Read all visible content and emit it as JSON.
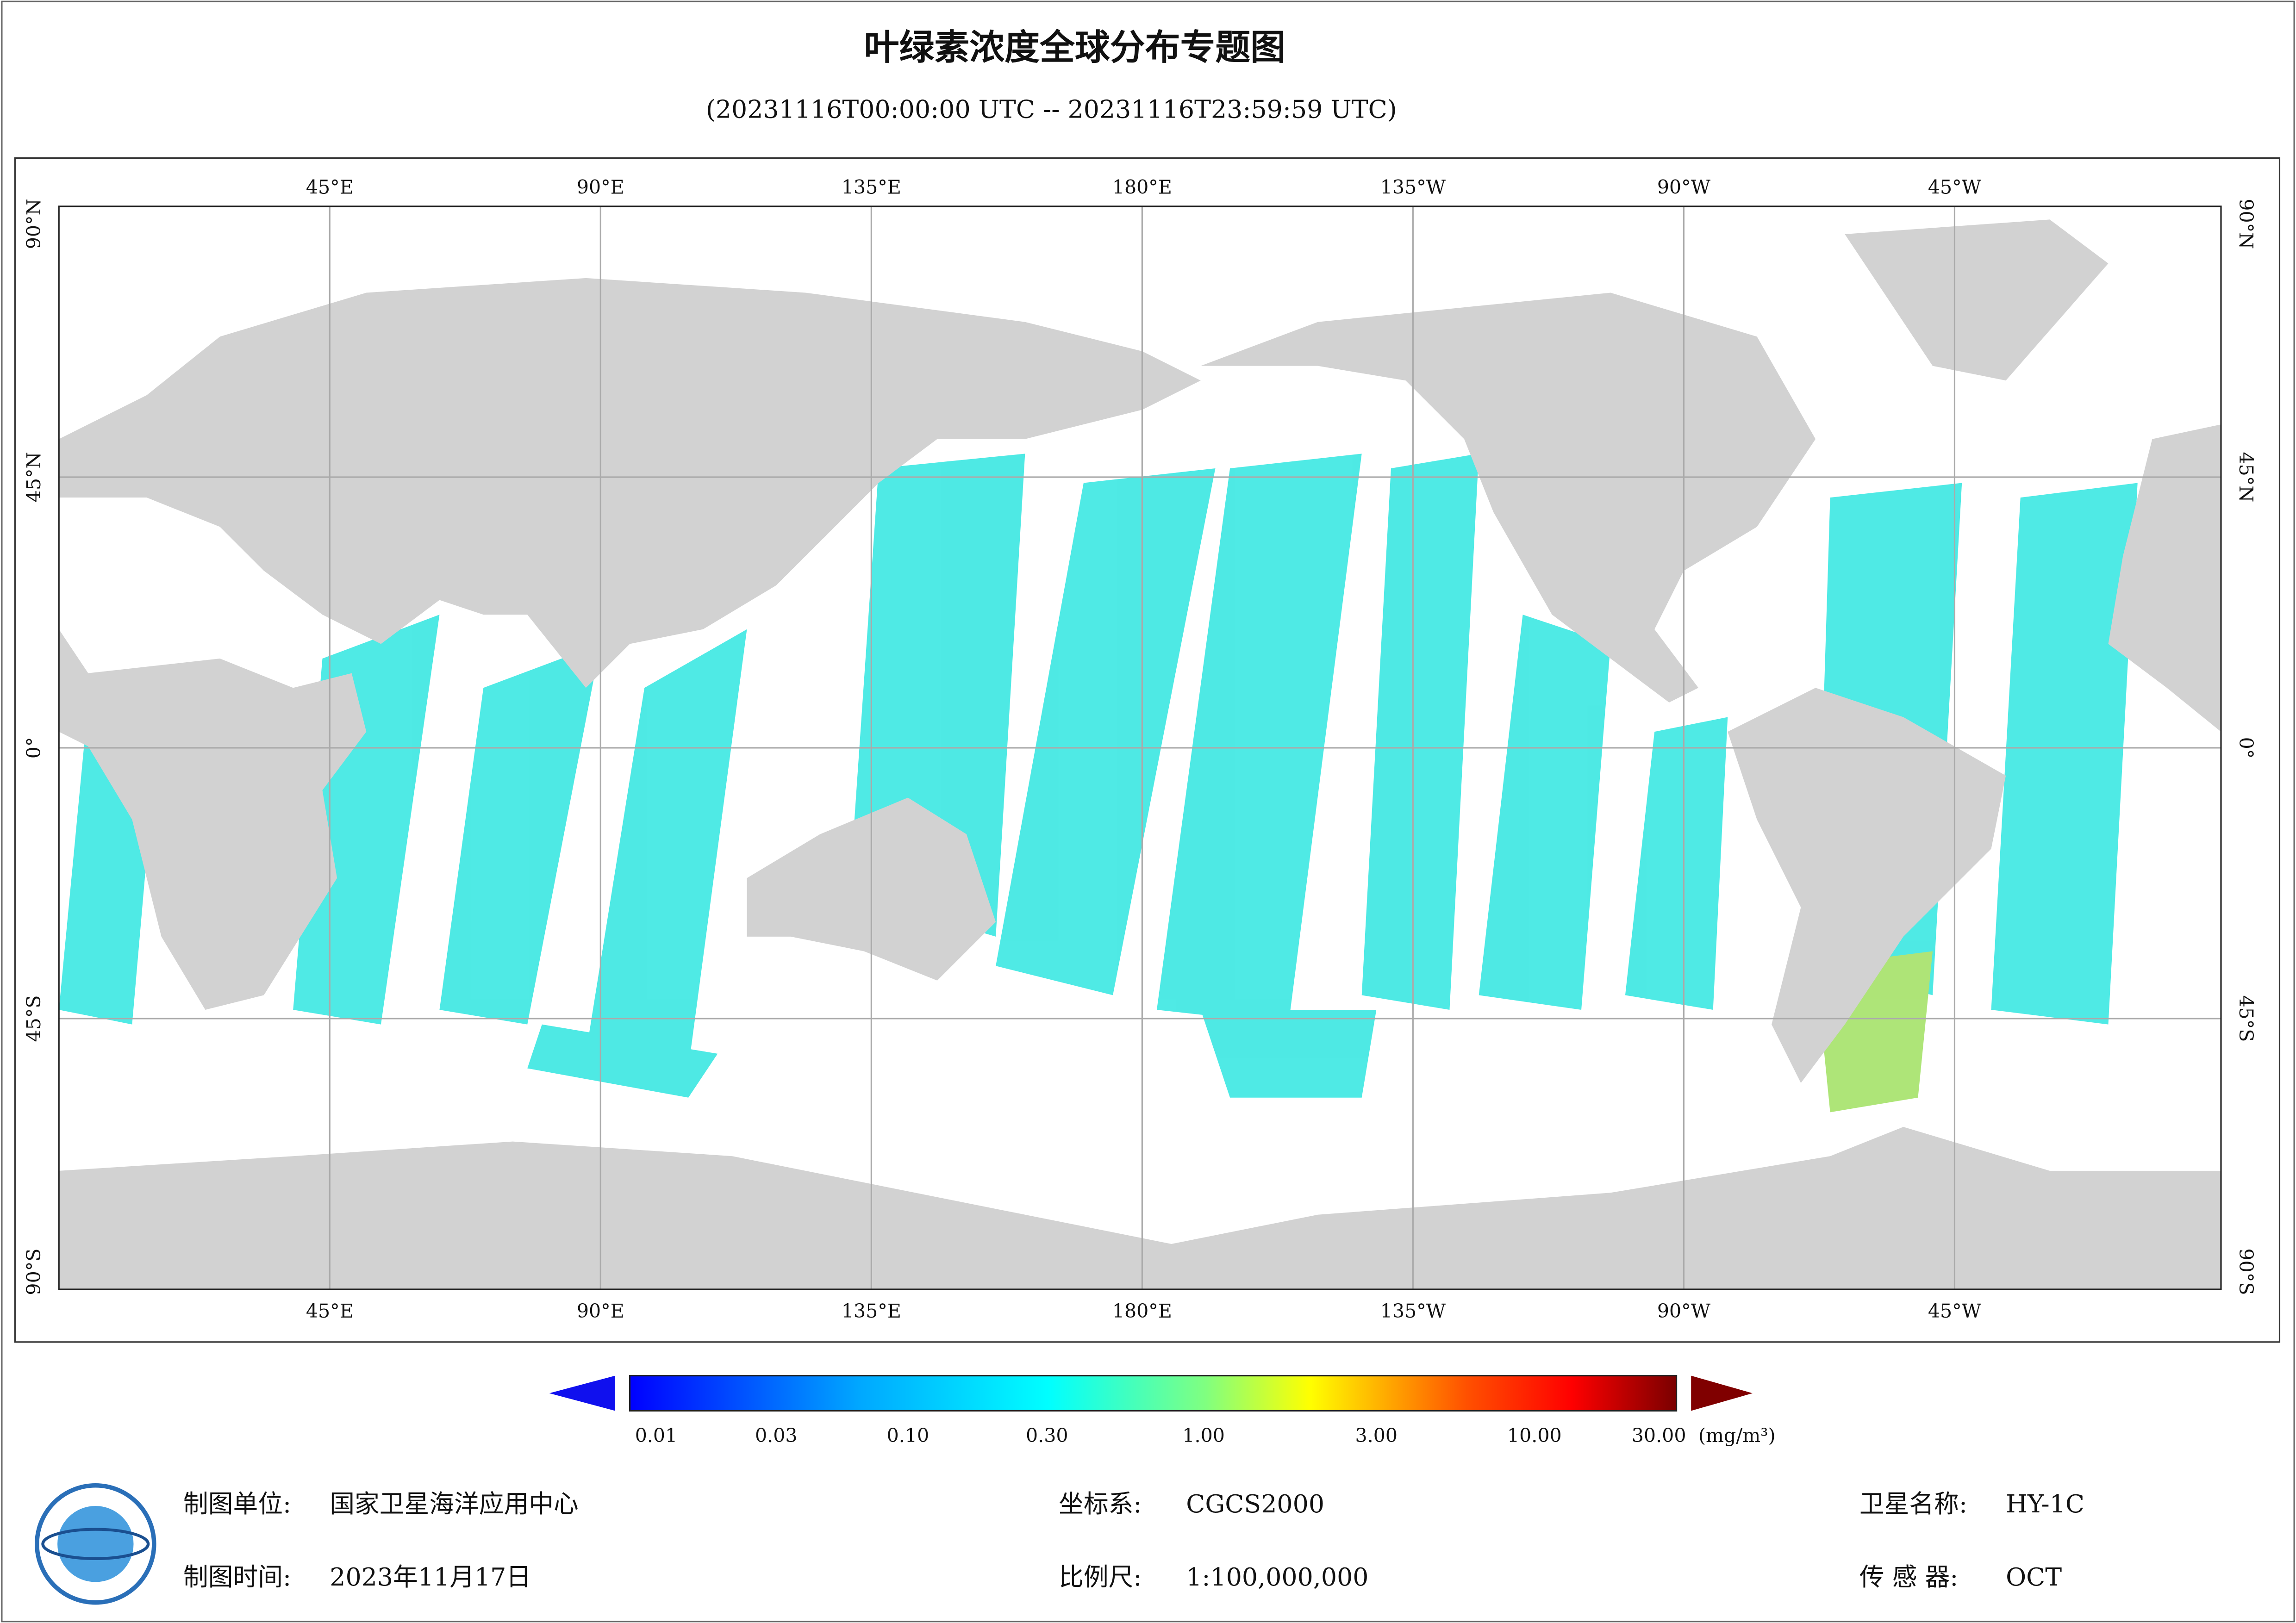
{
  "title": "叶绿素浓度全球分布专题图",
  "subtitle": "(20231116T00:00:00 UTC -- 20231116T23:59:59 UTC)",
  "map": {
    "lon_labels": [
      "45°E",
      "90°E",
      "135°E",
      "180°E",
      "135°W",
      "90°W",
      "45°W"
    ],
    "lat_labels": [
      "90°N",
      "45°N",
      "0°",
      "45°S",
      "90°S"
    ]
  },
  "colorbar": {
    "labels": [
      "0.01",
      "0.03",
      "0.10",
      "0.30",
      "1.00",
      "3.00",
      "10.00",
      "30.00"
    ],
    "unit": "(mg/m³)"
  },
  "footer": {
    "producer_label": "制图单位:",
    "producer": "国家卫星海洋应用中心",
    "date_label": "制图时间:",
    "date": "2023年11月17日",
    "crs_label": "坐标系:",
    "crs": "CGCS2000",
    "scale_label": "比例尺:",
    "scale": "1:100,000,000",
    "satellite_label": "卫星名称:",
    "satellite": "HY-1C",
    "sensor_label": "传 感 器:",
    "sensor": "OCT"
  }
}
